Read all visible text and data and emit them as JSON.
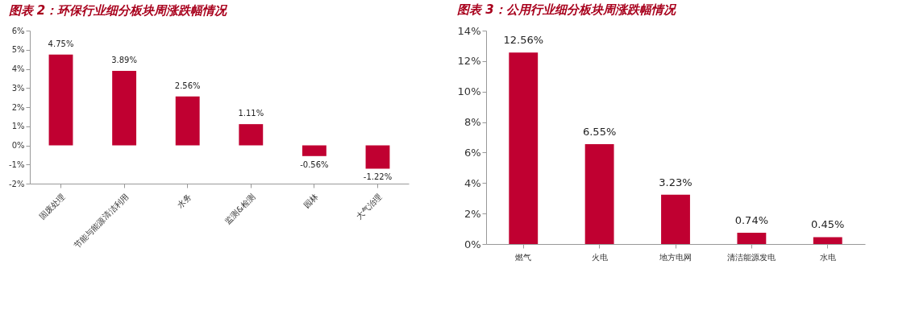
{
  "chart_data": [
    {
      "type": "bar",
      "title": "图表 2：环保行业细分板块周涨跌幅情况",
      "categories": [
        "固废处理",
        "节能与能源清洁利用",
        "水务",
        "监测&检测",
        "园林",
        "大气治理"
      ],
      "values": [
        4.75,
        3.89,
        2.56,
        1.11,
        -0.56,
        -1.22
      ],
      "color": "#c00031",
      "value_labels": [
        "4.75%",
        "3.89%",
        "2.56%",
        "1.11%",
        "-0.56%",
        "-1.22%"
      ],
      "ylim": [
        -2,
        6
      ],
      "yticks": [
        {
          "value": -2,
          "label": "-2%"
        },
        {
          "value": -1,
          "label": "-1%"
        },
        {
          "value": 0,
          "label": "0%"
        },
        {
          "value": 1,
          "label": "1%"
        },
        {
          "value": 2,
          "label": "2%"
        },
        {
          "value": 3,
          "label": "3%"
        },
        {
          "value": 4,
          "label": "4%"
        },
        {
          "value": 5,
          "label": "5%"
        },
        {
          "value": 6,
          "label": "6%"
        }
      ],
      "grid": false
    },
    {
      "type": "bar",
      "title": "图表 3：公用行业细分板块周涨跌幅情况",
      "categories": [
        "燃气",
        "火电",
        "地方电网",
        "清洁能源发电",
        "水电"
      ],
      "values": [
        12.56,
        6.55,
        3.23,
        0.74,
        0.45
      ],
      "color": "#c00031",
      "value_labels": [
        "12.56%",
        "6.55%",
        "3.23%",
        "0.74%",
        "0.45%"
      ],
      "ylim": [
        0,
        14
      ],
      "yticks": [
        {
          "value": 0,
          "label": "0%"
        },
        {
          "value": 2,
          "label": "2%"
        },
        {
          "value": 4,
          "label": "4%"
        },
        {
          "value": 6,
          "label": "6%"
        },
        {
          "value": 8,
          "label": "8%"
        },
        {
          "value": 10,
          "label": "10%"
        },
        {
          "value": 12,
          "label": "12%"
        },
        {
          "value": 14,
          "label": "14%"
        }
      ],
      "grid": false
    }
  ]
}
